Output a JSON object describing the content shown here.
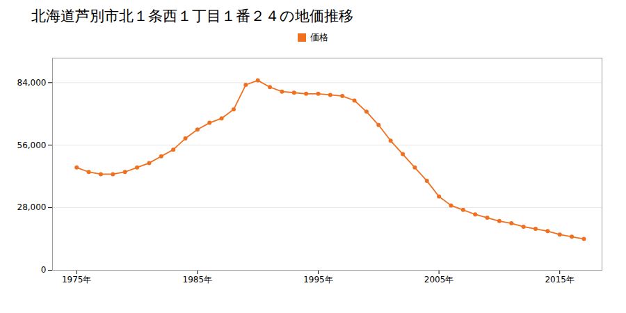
{
  "chart_data": {
    "type": "line",
    "title": "北海道芦別市北１条西１丁目１番２４の地価推移",
    "x": [
      1975,
      1976,
      1977,
      1978,
      1979,
      1980,
      1981,
      1982,
      1983,
      1984,
      1985,
      1986,
      1987,
      1988,
      1989,
      1990,
      1991,
      1992,
      1993,
      1994,
      1995,
      1996,
      1997,
      1998,
      1999,
      2000,
      2001,
      2002,
      2003,
      2004,
      2005,
      2006,
      2007,
      2008,
      2009,
      2010,
      2011,
      2012,
      2013,
      2014,
      2015,
      2016,
      2017
    ],
    "series": [
      {
        "name": "価格",
        "color": "#f07020",
        "marker": "circle",
        "values": [
          46000,
          44000,
          43000,
          43000,
          44000,
          46000,
          48000,
          51000,
          54000,
          59000,
          63000,
          66000,
          68000,
          72000,
          83000,
          85000,
          82000,
          80000,
          79500,
          79000,
          79000,
          78500,
          78000,
          76000,
          71000,
          65000,
          58000,
          52000,
          46000,
          40000,
          33000,
          29000,
          27000,
          25000,
          23500,
          22000,
          21000,
          19500,
          18500,
          17500,
          16000,
          15000,
          14000
        ]
      }
    ],
    "xlim": [
      1973,
      2018.5
    ],
    "xticks": [
      {
        "value": 1975,
        "label": "1975年"
      },
      {
        "value": 1985,
        "label": "1985年"
      },
      {
        "value": 1995,
        "label": "1995年"
      },
      {
        "value": 2005,
        "label": "2005年"
      },
      {
        "value": 2015,
        "label": "2015年"
      }
    ],
    "ylim": [
      0,
      95000
    ],
    "yticks": [
      0,
      {
        "value": 28000,
        "label": "28,000"
      },
      {
        "value": 56000,
        "label": "56,000"
      },
      {
        "value": 84000,
        "label": "84,000"
      }
    ],
    "grid": "y",
    "legend": "top"
  }
}
